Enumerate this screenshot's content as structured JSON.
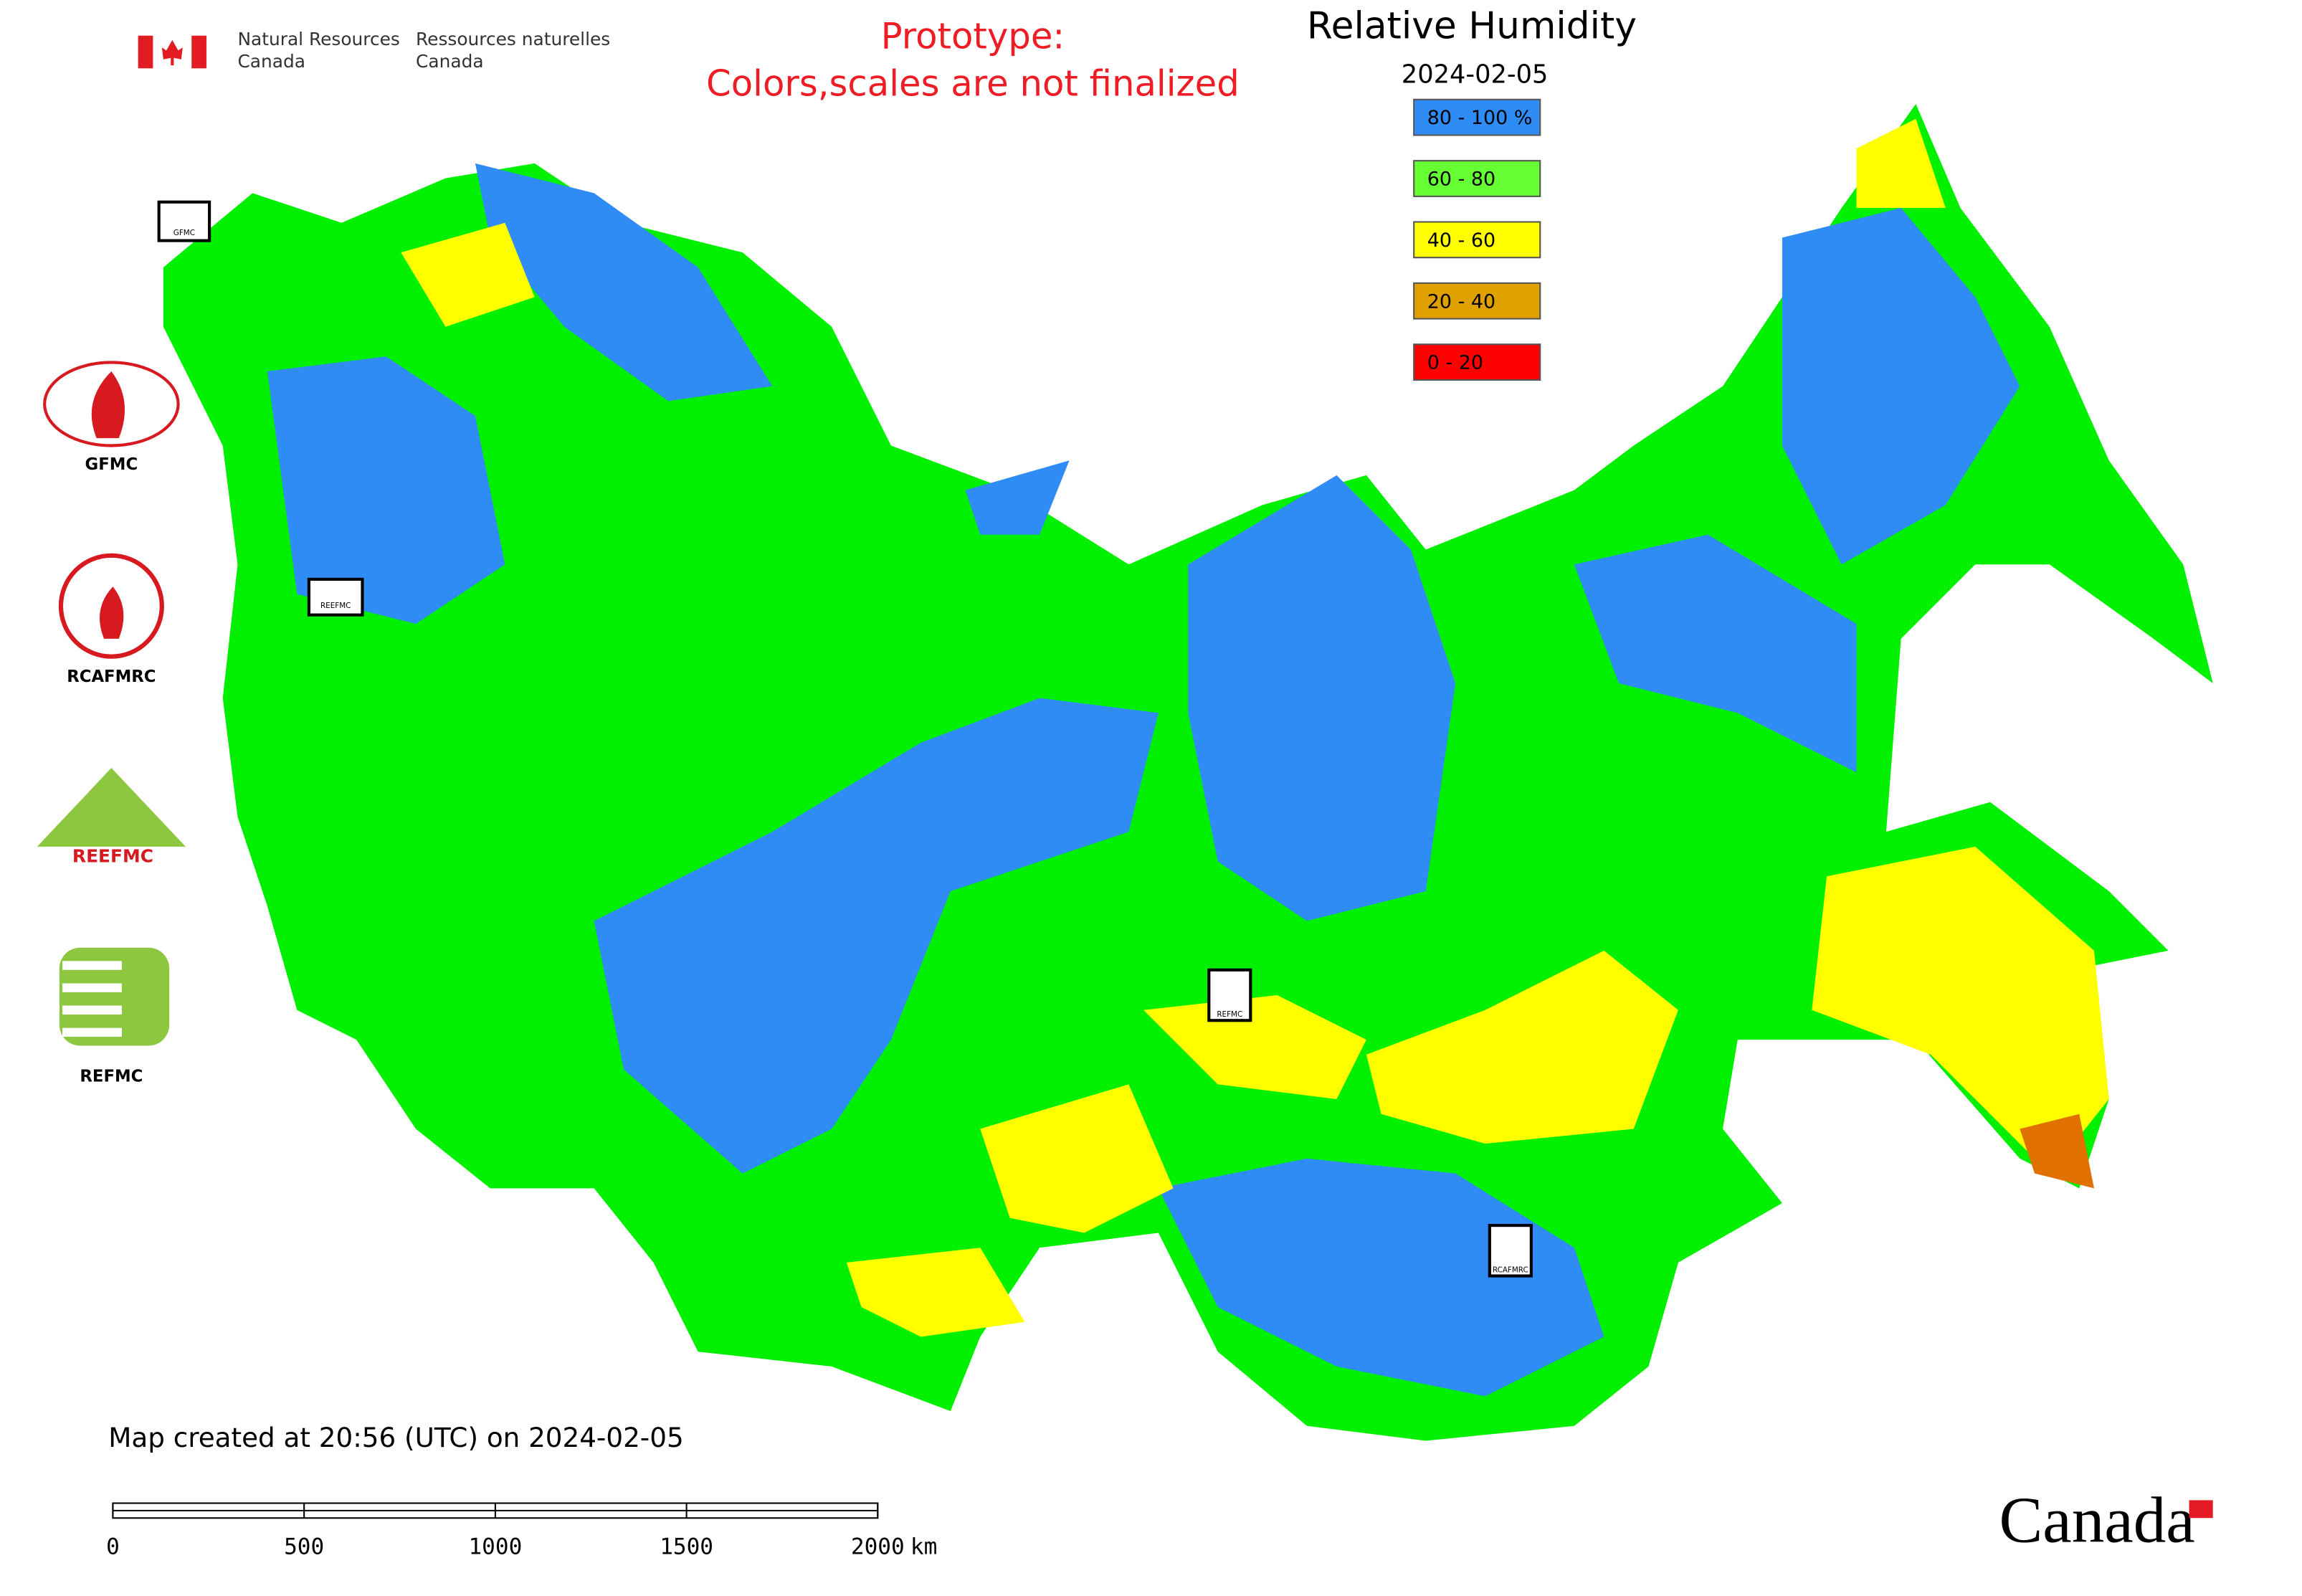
{
  "header": {
    "org_en": [
      "Natural Resources",
      "Canada"
    ],
    "org_fr": [
      "Ressources naturelles",
      "Canada"
    ]
  },
  "notice": [
    "Prototype:",
    "Colors,scales are not finalized"
  ],
  "title": "Relative Humidity",
  "date": "2024-02-05",
  "legend": [
    {
      "label": "80 - 100 %",
      "color": "#2f8cf5"
    },
    {
      "label": "60 - 80",
      "color": "#66ff33"
    },
    {
      "label": "40 - 60",
      "color": "#ffff00"
    },
    {
      "label": "20 - 40",
      "color": "#e0a000"
    },
    {
      "label": "0 - 20",
      "color": "#ff0000"
    }
  ],
  "logos": [
    "GFMC",
    "RCAFMRC",
    "REEFMC",
    "REFMC"
  ],
  "map_markers": [
    "GFMC",
    "REEFMC",
    "REFMC",
    "RCAFMRC"
  ],
  "footer": "Map created at 20:56 (UTC) on 2024-02-05",
  "scale_bar": {
    "ticks": [
      0,
      500,
      1000,
      1500,
      2000
    ],
    "unit": "km"
  },
  "wordmark": "Canada"
}
